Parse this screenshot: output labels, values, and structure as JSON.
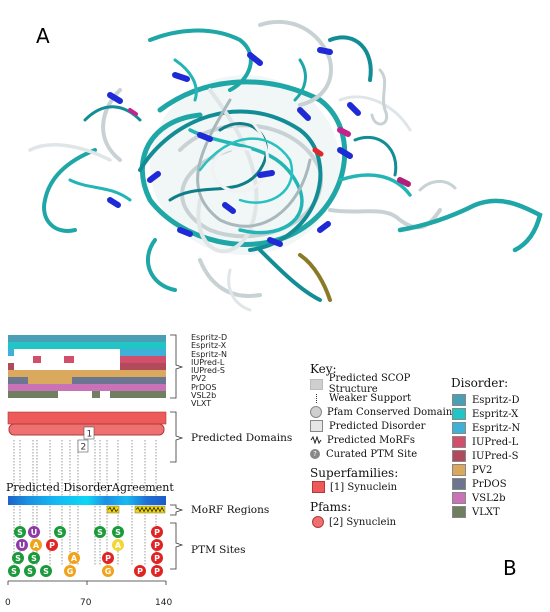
{
  "panel_a": {
    "letter": "A"
  },
  "panel_b": {
    "letter": "B"
  },
  "tracks": {
    "predictors": [
      "Espritz-D",
      "Espritz-X",
      "Espritz-N",
      "IUPred-L",
      "IUPred-S",
      "PV2",
      "PrDOS",
      "VSL2b",
      "VLXT"
    ],
    "predicted_domains": "Predicted Domains",
    "consensus": "Predicted DisorderAgreement",
    "morf_regions": "MoRF Regions",
    "ptm_sites": "PTM Sites",
    "domain_markers": [
      "1",
      "2"
    ],
    "axis_ticks": [
      "0",
      "70",
      "140"
    ]
  },
  "ptm_glyphs": {
    "S": "S",
    "U": "U",
    "A": "A",
    "G": "G",
    "P": "P"
  },
  "key": {
    "title": "Key:",
    "items": [
      "Predicted SCOP Structure",
      "Weaker Support",
      "Pfam Conserved Domain",
      "Predicted Disorder",
      "Predicted MoRFs",
      "Curated PTM Site"
    ],
    "superfamilies_title": "Superfamilies:",
    "superfamily_item": "[1] Synuclein",
    "pfams_title": "Pfams:",
    "pfam_item": "[2] Synuclein"
  },
  "disorder_legend": {
    "title": "Disorder:",
    "items": [
      {
        "label": "Espritz-D",
        "color": "#4a9fb5"
      },
      {
        "label": "Espritz-X",
        "color": "#22c5c5"
      },
      {
        "label": "Espritz-N",
        "color": "#3fb0d8"
      },
      {
        "label": "IUPred-L",
        "color": "#d24f6c"
      },
      {
        "label": "IUPred-S",
        "color": "#b14a5a"
      },
      {
        "label": "PV2",
        "color": "#dba95e"
      },
      {
        "label": "PrDOS",
        "color": "#6d7690"
      },
      {
        "label": "VSL2b",
        "color": "#c972b8"
      },
      {
        "label": "VLXT",
        "color": "#6f7f5f"
      }
    ]
  },
  "colors": {
    "domain_red": "#ec5a5a",
    "morf_yellow": "#f2d600",
    "ptm_green": "#1a9a3a",
    "ptm_purple": "#8e3aa8",
    "ptm_orange": "#f0a21a",
    "ptm_red": "#e02424",
    "ptm_yellow": "#f3d633"
  }
}
